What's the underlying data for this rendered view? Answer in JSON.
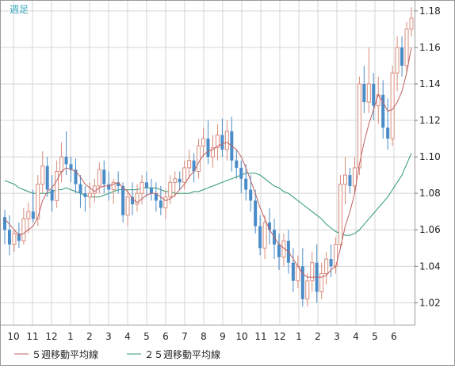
{
  "chart_data": {
    "type": "candlestick",
    "period_label": "週足",
    "y_ticks": [
      1.02,
      1.04,
      1.06,
      1.08,
      1.1,
      1.12,
      1.14,
      1.16,
      1.18
    ],
    "ylim": [
      1.008,
      1.186
    ],
    "month_labels": [
      "10",
      "11",
      "12",
      "1",
      "2",
      "3",
      "4",
      "5",
      "6",
      "7",
      "8",
      "9",
      "10",
      "11",
      "12",
      "1",
      "2",
      "3",
      "4",
      "5",
      "6"
    ],
    "grid": true,
    "legend": [
      {
        "name": "５週移動平均線",
        "color": "#c06060"
      },
      {
        "name": "２５週移動平均線",
        "color": "#2e9a70"
      }
    ],
    "colors": {
      "up": "#d98c7c",
      "down": "#4a8cc8",
      "ma5": "#c06060",
      "ma25": "#2e9a70",
      "grid": "#d4d4d4",
      "label": "#3aa8c0"
    },
    "candles": [
      [
        1.067,
        1.071,
        1.052,
        1.06
      ],
      [
        1.06,
        1.068,
        1.046,
        1.052
      ],
      [
        1.052,
        1.06,
        1.048,
        1.058
      ],
      [
        1.058,
        1.064,
        1.05,
        1.054
      ],
      [
        1.054,
        1.072,
        1.052,
        1.066
      ],
      [
        1.066,
        1.075,
        1.058,
        1.07
      ],
      [
        1.07,
        1.082,
        1.064,
        1.066
      ],
      [
        1.066,
        1.09,
        1.062,
        1.085
      ],
      [
        1.085,
        1.103,
        1.08,
        1.095
      ],
      [
        1.095,
        1.1,
        1.078,
        1.082
      ],
      [
        1.082,
        1.09,
        1.07,
        1.076
      ],
      [
        1.076,
        1.098,
        1.072,
        1.092
      ],
      [
        1.092,
        1.108,
        1.086,
        1.1
      ],
      [
        1.1,
        1.114,
        1.09,
        1.096
      ],
      [
        1.096,
        1.1,
        1.086,
        1.093
      ],
      [
        1.093,
        1.099,
        1.08,
        1.085
      ],
      [
        1.085,
        1.09,
        1.072,
        1.08
      ],
      [
        1.08,
        1.084,
        1.07,
        1.078
      ],
      [
        1.078,
        1.086,
        1.072,
        1.08
      ],
      [
        1.08,
        1.088,
        1.075,
        1.084
      ],
      [
        1.084,
        1.097,
        1.08,
        1.093
      ],
      [
        1.093,
        1.098,
        1.08,
        1.085
      ],
      [
        1.085,
        1.092,
        1.076,
        1.082
      ],
      [
        1.082,
        1.088,
        1.074,
        1.086
      ],
      [
        1.086,
        1.092,
        1.08,
        1.084
      ],
      [
        1.084,
        1.086,
        1.064,
        1.068
      ],
      [
        1.068,
        1.082,
        1.062,
        1.078
      ],
      [
        1.078,
        1.086,
        1.068,
        1.074
      ],
      [
        1.074,
        1.085,
        1.07,
        1.08
      ],
      [
        1.08,
        1.09,
        1.074,
        1.086
      ],
      [
        1.086,
        1.092,
        1.078,
        1.083
      ],
      [
        1.083,
        1.088,
        1.076,
        1.08
      ],
      [
        1.08,
        1.086,
        1.07,
        1.076
      ],
      [
        1.076,
        1.084,
        1.068,
        1.072
      ],
      [
        1.072,
        1.082,
        1.066,
        1.078
      ],
      [
        1.078,
        1.09,
        1.074,
        1.086
      ],
      [
        1.086,
        1.092,
        1.078,
        1.088
      ],
      [
        1.088,
        1.092,
        1.082,
        1.086
      ],
      [
        1.086,
        1.098,
        1.082,
        1.094
      ],
      [
        1.094,
        1.104,
        1.088,
        1.098
      ],
      [
        1.098,
        1.102,
        1.086,
        1.092
      ],
      [
        1.092,
        1.11,
        1.088,
        1.106
      ],
      [
        1.106,
        1.116,
        1.1,
        1.11
      ],
      [
        1.11,
        1.12,
        1.096,
        1.1
      ],
      [
        1.1,
        1.112,
        1.094,
        1.105
      ],
      [
        1.105,
        1.118,
        1.098,
        1.112
      ],
      [
        1.112,
        1.121,
        1.1,
        1.104
      ],
      [
        1.104,
        1.12,
        1.098,
        1.114
      ],
      [
        1.114,
        1.122,
        1.092,
        1.098
      ],
      [
        1.098,
        1.104,
        1.088,
        1.094
      ],
      [
        1.094,
        1.098,
        1.08,
        1.088
      ],
      [
        1.088,
        1.096,
        1.076,
        1.082
      ],
      [
        1.082,
        1.09,
        1.07,
        1.076
      ],
      [
        1.076,
        1.082,
        1.058,
        1.062
      ],
      [
        1.062,
        1.068,
        1.046,
        1.05
      ],
      [
        1.05,
        1.068,
        1.044,
        1.064
      ],
      [
        1.064,
        1.072,
        1.052,
        1.06
      ],
      [
        1.06,
        1.066,
        1.044,
        1.052
      ],
      [
        1.052,
        1.058,
        1.038,
        1.045
      ],
      [
        1.045,
        1.058,
        1.04,
        1.054
      ],
      [
        1.054,
        1.06,
        1.036,
        1.042
      ],
      [
        1.042,
        1.05,
        1.026,
        1.032
      ],
      [
        1.032,
        1.046,
        1.028,
        1.04
      ],
      [
        1.04,
        1.05,
        1.018,
        1.022
      ],
      [
        1.022,
        1.036,
        1.018,
        1.032
      ],
      [
        1.032,
        1.048,
        1.026,
        1.042
      ],
      [
        1.042,
        1.052,
        1.02,
        1.026
      ],
      [
        1.026,
        1.042,
        1.022,
        1.036
      ],
      [
        1.036,
        1.048,
        1.03,
        1.044
      ],
      [
        1.044,
        1.052,
        1.034,
        1.04
      ],
      [
        1.04,
        1.056,
        1.036,
        1.052
      ],
      [
        1.052,
        1.09,
        1.05,
        1.085
      ],
      [
        1.085,
        1.1,
        1.074,
        1.09
      ],
      [
        1.09,
        1.094,
        1.08,
        1.084
      ],
      [
        1.084,
        1.1,
        1.08,
        1.094
      ],
      [
        1.094,
        1.144,
        1.09,
        1.14
      ],
      [
        1.14,
        1.15,
        1.124,
        1.13
      ],
      [
        1.13,
        1.16,
        1.124,
        1.14
      ],
      [
        1.14,
        1.146,
        1.12,
        1.128
      ],
      [
        1.128,
        1.144,
        1.118,
        1.134
      ],
      [
        1.134,
        1.142,
        1.11,
        1.116
      ],
      [
        1.116,
        1.132,
        1.104,
        1.11
      ],
      [
        1.11,
        1.15,
        1.106,
        1.146
      ],
      [
        1.146,
        1.166,
        1.136,
        1.16
      ],
      [
        1.16,
        1.166,
        1.144,
        1.15
      ],
      [
        1.15,
        1.174,
        1.146,
        1.17
      ],
      [
        1.17,
        1.182,
        1.166,
        1.176
      ]
    ],
    "ma5": [
      1.066,
      1.063,
      1.06,
      1.057,
      1.058,
      1.06,
      1.062,
      1.067,
      1.076,
      1.081,
      1.083,
      1.087,
      1.092,
      1.094,
      1.093,
      1.092,
      1.089,
      1.085,
      1.083,
      1.081,
      1.083,
      1.084,
      1.084,
      1.085,
      1.086,
      1.083,
      1.081,
      1.077,
      1.075,
      1.077,
      1.079,
      1.08,
      1.08,
      1.078,
      1.076,
      1.077,
      1.079,
      1.082,
      1.085,
      1.089,
      1.092,
      1.097,
      1.101,
      1.103,
      1.104,
      1.106,
      1.107,
      1.108,
      1.106,
      1.104,
      1.1,
      1.094,
      1.087,
      1.08,
      1.072,
      1.066,
      1.06,
      1.056,
      1.052,
      1.05,
      1.048,
      1.044,
      1.04,
      1.036,
      1.034,
      1.034,
      1.034,
      1.034,
      1.035,
      1.038,
      1.04,
      1.05,
      1.062,
      1.07,
      1.08,
      1.096,
      1.108,
      1.118,
      1.126,
      1.134,
      1.13,
      1.125,
      1.126,
      1.13,
      1.136,
      1.146,
      1.16
    ],
    "ma25": [
      1.087,
      1.086,
      1.085,
      1.083,
      1.082,
      1.081,
      1.08,
      1.08,
      1.08,
      1.08,
      1.081,
      1.082,
      1.082,
      1.083,
      1.082,
      1.081,
      1.08,
      1.079,
      1.078,
      1.078,
      1.078,
      1.079,
      1.08,
      1.081,
      1.082,
      1.082,
      1.082,
      1.082,
      1.082,
      1.083,
      1.083,
      1.083,
      1.083,
      1.082,
      1.081,
      1.081,
      1.08,
      1.08,
      1.08,
      1.08,
      1.081,
      1.081,
      1.082,
      1.083,
      1.084,
      1.085,
      1.086,
      1.087,
      1.088,
      1.089,
      1.09,
      1.091,
      1.091,
      1.091,
      1.09,
      1.088,
      1.086,
      1.084,
      1.083,
      1.081,
      1.08,
      1.078,
      1.076,
      1.074,
      1.072,
      1.07,
      1.068,
      1.066,
      1.063,
      1.061,
      1.059,
      1.058,
      1.057,
      1.057,
      1.058,
      1.06,
      1.063,
      1.066,
      1.069,
      1.072,
      1.075,
      1.078,
      1.082,
      1.086,
      1.09,
      1.096,
      1.102
    ]
  }
}
